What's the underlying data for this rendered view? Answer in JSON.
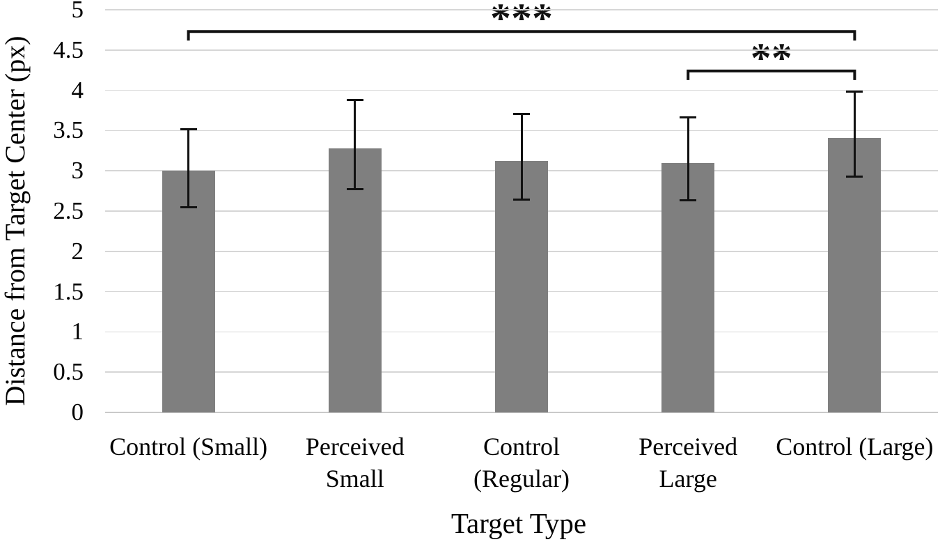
{
  "chart_data": {
    "type": "bar",
    "title": "",
    "xlabel": "Target Type",
    "ylabel": "Distance from Target Center (px)",
    "categories": [
      "Control (Small)",
      "Perceived Small",
      "Control (Regular)",
      "Perceived Large",
      "Control (Large)"
    ],
    "category_lines": [
      [
        "Control (Small)"
      ],
      [
        "Perceived",
        "Small"
      ],
      [
        "Control",
        "(Regular)"
      ],
      [
        "Perceived",
        "Large"
      ],
      [
        "Control (Large)"
      ]
    ],
    "values": [
      3.0,
      3.28,
      3.12,
      3.1,
      3.41
    ],
    "error_upper": [
      3.52,
      3.88,
      3.71,
      3.66,
      3.98
    ],
    "error_lower": [
      2.55,
      2.77,
      2.64,
      2.63,
      2.93
    ],
    "ylim": [
      0,
      5
    ],
    "ytick_labels": [
      "0",
      "0.5",
      "1",
      "1.5",
      "2",
      "2.5",
      "3",
      "3.5",
      "4",
      "4.5",
      "5"
    ],
    "grid": true,
    "legend": "none",
    "bar_color": "#7f7f7f",
    "gridline_color": "#d6d6d6",
    "error_bar_color": "#111111",
    "significance": [
      {
        "label": "***",
        "from_category": 0,
        "to_category": 4,
        "y_value": 4.73
      },
      {
        "label": "**",
        "from_category": 3,
        "to_category": 4,
        "y_value": 4.24
      }
    ]
  }
}
